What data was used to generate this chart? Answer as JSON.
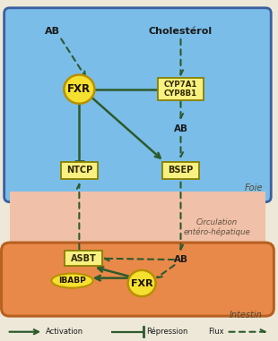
{
  "bg_color": "#ede8d8",
  "liver_box_color": "#7abde8",
  "liver_box_edge": "#3a5fa0",
  "intestine_color": "#e8894a",
  "intestine_edge": "#b86020",
  "portal_color": "#f0c0a8",
  "node_fill": "#f5e030",
  "node_edge": "#b89000",
  "box_fill": "#f8f080",
  "box_edge": "#888000",
  "arrow_color": "#2d5a2d",
  "text_color": "#1a1a1a",
  "foie_label": "Foie",
  "intestin_label": "Intestin",
  "circulation_label": "Circulation\nentéro-hépatique",
  "legend_activation": "Activation",
  "legend_repression": "Répression",
  "legend_flux": "Flux"
}
